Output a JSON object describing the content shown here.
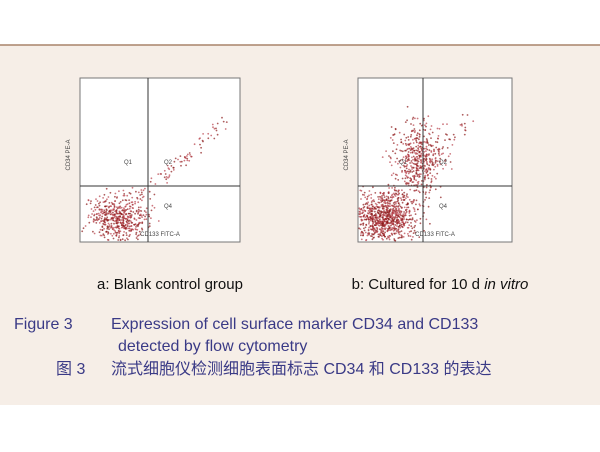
{
  "panels": [
    {
      "y_axis_label": "CD34 PE-A",
      "x_axis_label": "CD133 FITC-A",
      "quadrants": [
        "Q1",
        "Q2",
        "Q4"
      ],
      "caption": "a: Blank control group"
    },
    {
      "y_axis_label": "CD34 PE-A",
      "x_axis_label": "CD133 FITC-A",
      "quadrants": [
        "Q1",
        "Q2",
        "Q4"
      ],
      "caption": "b: Cultured for 10 d ",
      "caption_italic": "in vitro"
    }
  ],
  "figure_caption": {
    "label": "Figure 3",
    "text": "Expression of cell surface marker CD34 and CD133",
    "text_line2": "detected by flow cytometry",
    "cn_label": "图 3",
    "cn_text": "流式细胞仪检测细胞表面标志 CD34 和 CD133 的表达"
  }
}
